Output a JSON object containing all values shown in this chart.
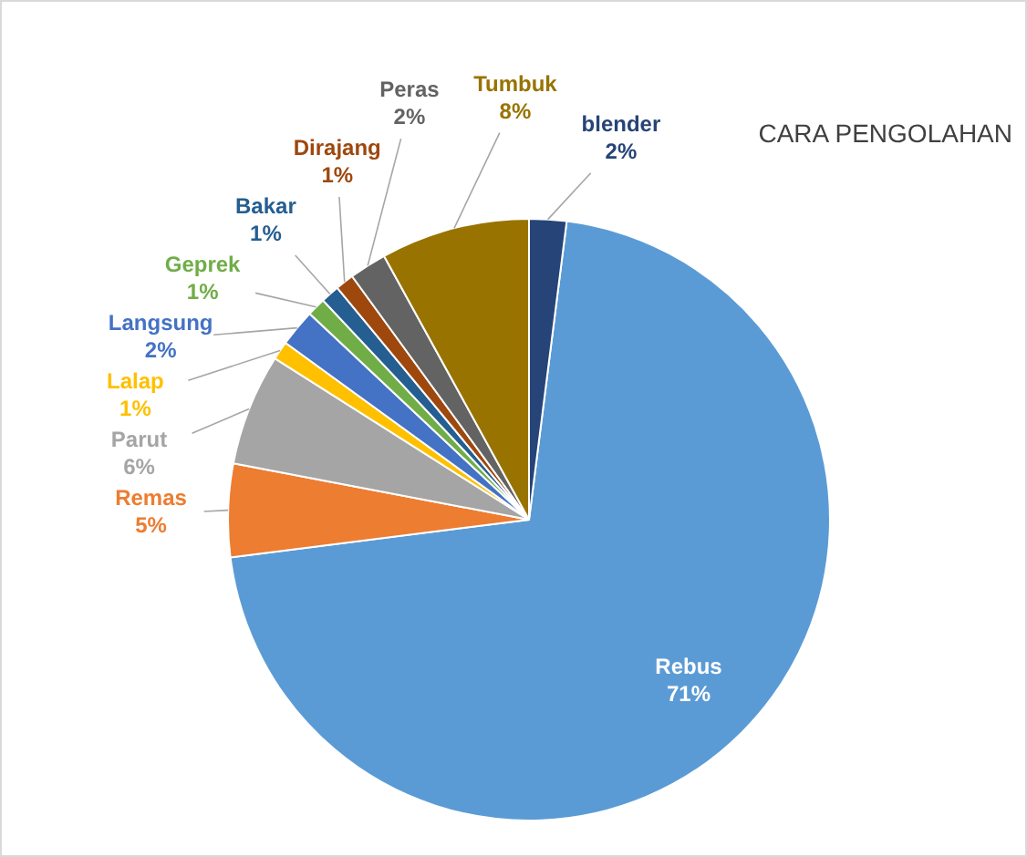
{
  "chart_data": {
    "type": "pie",
    "title": "CARA PENGOLAHAN",
    "categories": [
      "Rebus",
      "Remas",
      "Parut",
      "Lalap",
      "Langsung",
      "Geprek",
      "Bakar",
      "Dirajang",
      "Peras",
      "Tumbuk",
      "blender"
    ],
    "values": [
      71,
      5,
      6,
      1,
      2,
      1,
      1,
      1,
      2,
      8,
      2
    ],
    "value_labels": [
      "71%",
      "5%",
      "6%",
      "1%",
      "2%",
      "1%",
      "1%",
      "1%",
      "2%",
      "8%",
      "2%"
    ],
    "colors": [
      "#5b9bd5",
      "#ed7d31",
      "#a5a5a5",
      "#ffc000",
      "#4472c4",
      "#70ad47",
      "#255e91",
      "#9e480e",
      "#636363",
      "#997300",
      "#264478"
    ]
  }
}
